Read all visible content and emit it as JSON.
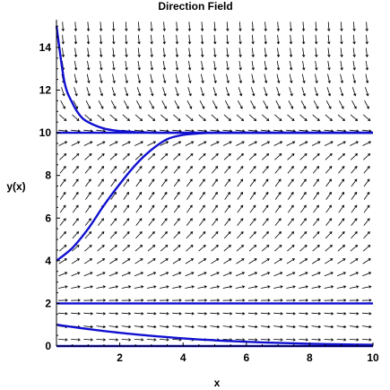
{
  "chart_data": {
    "type": "line",
    "title": "Direction Field",
    "xlabel": "x",
    "ylabel": "y(x)",
    "xlim": [
      0,
      10
    ],
    "ylim": [
      0,
      15.3
    ],
    "xticks": [
      2,
      4,
      6,
      8,
      10
    ],
    "yticks": [
      0,
      2,
      4,
      6,
      8,
      10,
      12,
      14
    ],
    "xtick_labels": [
      "2",
      "4",
      "6",
      "8",
      "10"
    ],
    "ytick_labels": [
      "0",
      "2",
      "4",
      "6",
      "8",
      "10",
      "12",
      "14"
    ],
    "grid": false,
    "direction_field": {
      "equilibria": [
        0,
        2,
        10
      ],
      "x_samples": 25,
      "y_samples": 25
    },
    "series": [
      {
        "x": [
          0,
          0.25,
          0.5,
          0.75,
          1,
          1.5,
          2,
          2.5,
          3,
          3.5,
          4,
          5,
          6,
          8,
          10
        ],
        "y": [
          15,
          12.4,
          11.4,
          10.8,
          10.5,
          10.2,
          10.08,
          10.03,
          10.01,
          10,
          10,
          10,
          10,
          10,
          10
        ]
      },
      {
        "x": [
          0,
          10
        ],
        "y": [
          10,
          10
        ]
      },
      {
        "x": [
          0,
          0.5,
          1,
          1.5,
          2,
          2.5,
          3,
          3.5,
          4,
          4.5,
          5,
          6,
          8,
          10
        ],
        "y": [
          4,
          4.6,
          5.5,
          6.6,
          7.6,
          8.5,
          9.2,
          9.7,
          9.9,
          9.97,
          10,
          10,
          10,
          10
        ]
      },
      {
        "x": [
          0,
          10
        ],
        "y": [
          2,
          2
        ]
      },
      {
        "x": [
          0,
          1,
          2,
          3,
          4,
          5,
          6,
          7,
          8,
          9,
          10
        ],
        "y": [
          1,
          0.8,
          0.62,
          0.48,
          0.36,
          0.27,
          0.2,
          0.15,
          0.11,
          0.08,
          0.06
        ]
      },
      {
        "x": [
          0,
          10
        ],
        "y": [
          0,
          0
        ]
      }
    ],
    "colors": {
      "curve": "#1010d0",
      "arrow": "#000000",
      "axis": "#000000"
    }
  }
}
